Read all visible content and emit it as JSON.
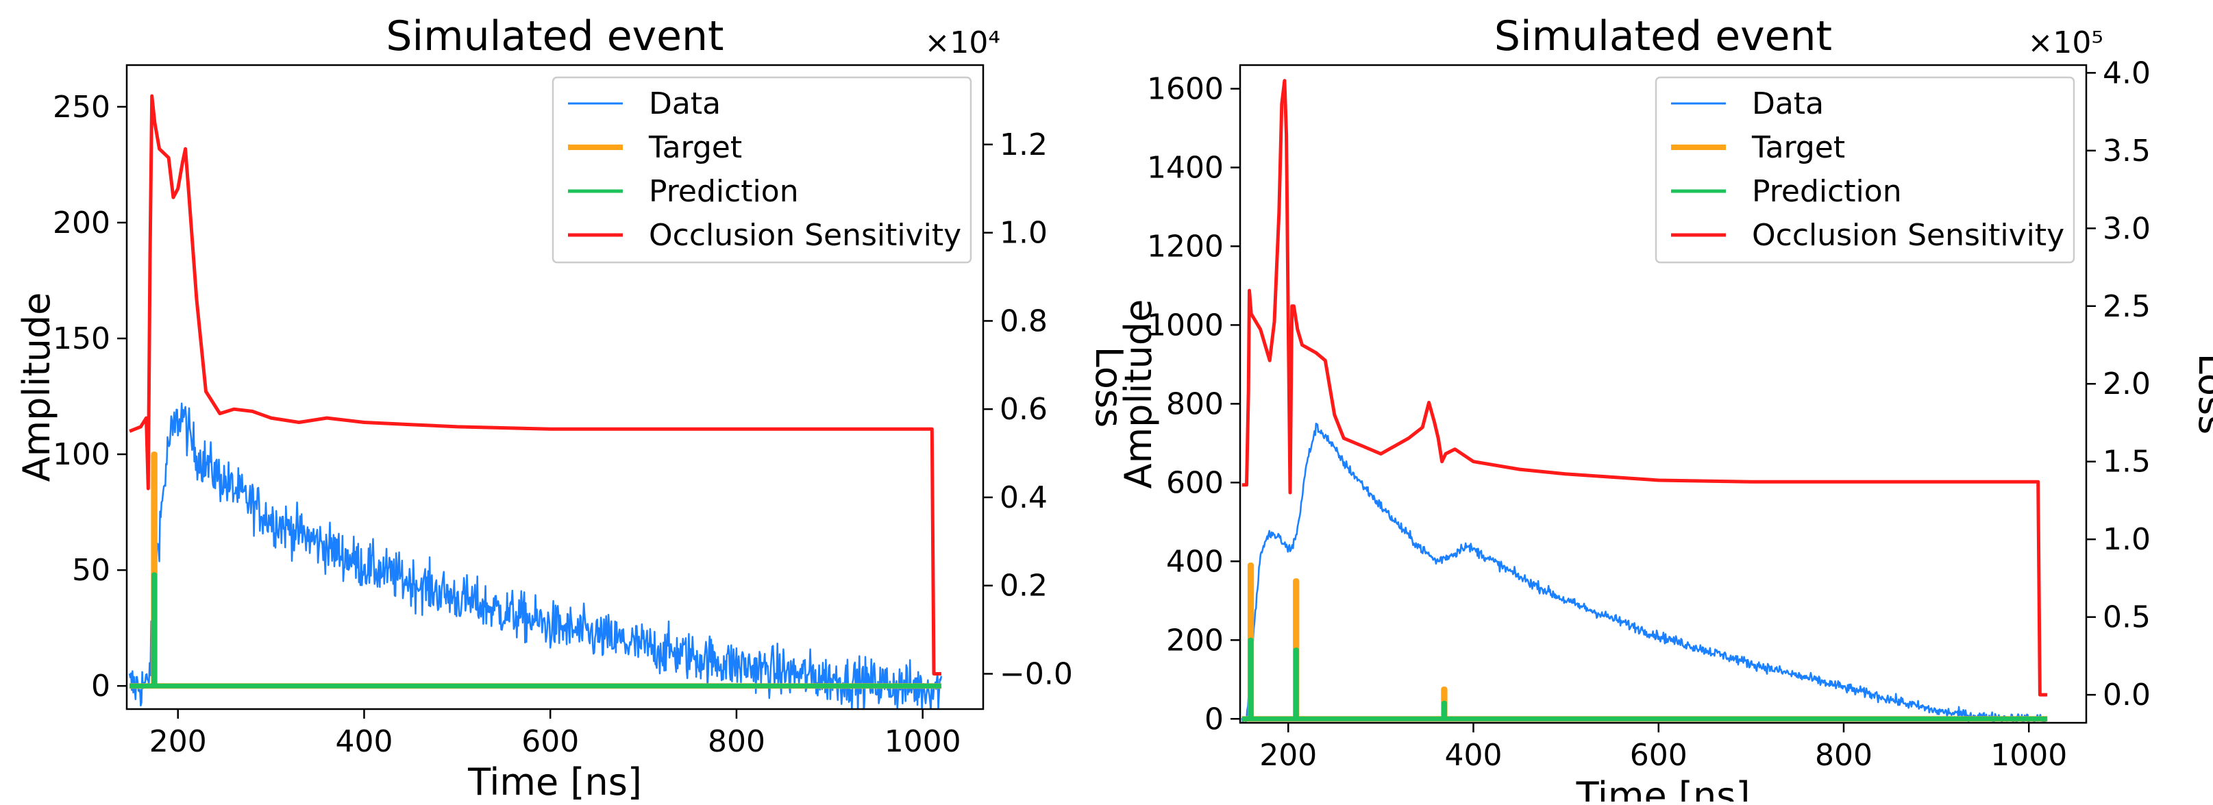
{
  "chart_data": [
    {
      "type": "line",
      "title": "Simulated event",
      "xlabel": "Time [ns]",
      "ylabel": "Amplitude",
      "y2label": "Loss",
      "y2_exponent": "×10⁴",
      "xlim": [
        145,
        1065
      ],
      "ylim": [
        -10,
        268
      ],
      "y2lim": [
        -800,
        13800
      ],
      "xticks": [
        200,
        400,
        600,
        800,
        1000
      ],
      "yticks": [
        0,
        50,
        100,
        150,
        200,
        250
      ],
      "y2ticks": [
        0,
        2000,
        4000,
        6000,
        8000,
        10000,
        12000
      ],
      "y2ticklabels": [
        "−0.0",
        "0.2",
        "0.4",
        "0.6",
        "0.8",
        "1.0",
        "1.2"
      ],
      "legend": {
        "placement": "top-right",
        "entries": [
          {
            "label": "Data",
            "color": "#1a80ff"
          },
          {
            "label": "Target",
            "color": "#ffa319"
          },
          {
            "label": "Prediction",
            "color": "#1ec25a"
          },
          {
            "label": "Occlusion Sensitivity",
            "color": "#ff1a1a"
          }
        ]
      },
      "series": [
        {
          "name": "Data",
          "color": "#1a80ff",
          "axis": "left",
          "noise": 10,
          "x": [
            148,
            168,
            172,
            178,
            190,
            200,
            205,
            210,
            220,
            250,
            300,
            400,
            500,
            600,
            700,
            800,
            900,
            1000,
            1020
          ],
          "values": [
            0,
            0,
            20,
            60,
            105,
            115,
            118,
            110,
            100,
            88,
            72,
            52,
            38,
            26,
            17,
            9,
            3,
            -1,
            0
          ]
        },
        {
          "name": "Target",
          "color": "#ffa319",
          "axis": "left",
          "x": [
            148,
            174,
            174,
            175,
            175,
            1020
          ],
          "values": [
            0,
            0,
            100,
            100,
            0,
            0
          ]
        },
        {
          "name": "Prediction",
          "color": "#1ec25a",
          "axis": "left",
          "x": [
            148,
            174,
            174,
            175,
            175,
            1020
          ],
          "values": [
            0,
            0,
            48,
            48,
            0,
            0
          ]
        },
        {
          "name": "Occlusion Sensitivity",
          "color": "#ff1a1a",
          "axis": "right",
          "x": [
            148,
            160,
            166,
            168,
            170,
            172,
            175,
            180,
            190,
            195,
            200,
            205,
            208,
            212,
            220,
            230,
            245,
            260,
            280,
            300,
            330,
            360,
            400,
            450,
            500,
            600,
            700,
            800,
            900,
            1000,
            1010,
            1012,
            1015,
            1020
          ],
          "values": [
            5500,
            5600,
            5800,
            4200,
            9500,
            13100,
            12500,
            11900,
            11700,
            10800,
            11000,
            11600,
            11900,
            10800,
            8500,
            6400,
            5900,
            6000,
            5950,
            5800,
            5700,
            5800,
            5700,
            5650,
            5600,
            5550,
            5550,
            5550,
            5550,
            5550,
            5550,
            0,
            0,
            0
          ]
        }
      ]
    },
    {
      "type": "line",
      "title": "Simulated event",
      "xlabel": "Time [ns]",
      "ylabel": "Amplitude",
      "y2label": "Loss",
      "y2_exponent": "×10⁵",
      "xlim": [
        148,
        1062
      ],
      "ylim": [
        -10,
        1660
      ],
      "y2lim": [
        -18000,
        405000
      ],
      "xticks": [
        200,
        400,
        600,
        800,
        1000
      ],
      "yticks": [
        0,
        200,
        400,
        600,
        800,
        1000,
        1200,
        1400,
        1600
      ],
      "y2ticks": [
        0,
        50000,
        100000,
        150000,
        200000,
        250000,
        300000,
        350000,
        400000
      ],
      "y2ticklabels": [
        "0.0",
        "0.5",
        "1.0",
        "1.5",
        "2.0",
        "2.5",
        "3.0",
        "3.5",
        "4.0"
      ],
      "legend": {
        "placement": "top-right",
        "entries": [
          {
            "label": "Data",
            "color": "#1a80ff"
          },
          {
            "label": "Target",
            "color": "#ffa319"
          },
          {
            "label": "Prediction",
            "color": "#1ec25a"
          },
          {
            "label": "Occlusion Sensitivity",
            "color": "#ff1a1a"
          }
        ]
      },
      "series": [
        {
          "name": "Data",
          "color": "#1a80ff",
          "axis": "left",
          "noise": 12,
          "x": [
            150,
            155,
            160,
            170,
            180,
            190,
            200,
            205,
            210,
            220,
            230,
            240,
            260,
            300,
            340,
            360,
            380,
            390,
            400,
            450,
            500,
            600,
            700,
            800,
            900,
            950,
            1000,
            1020
          ],
          "values": [
            0,
            0,
            150,
            420,
            470,
            460,
            430,
            440,
            480,
            650,
            740,
            720,
            650,
            540,
            440,
            400,
            420,
            440,
            430,
            360,
            300,
            210,
            140,
            80,
            20,
            5,
            0,
            0
          ]
        },
        {
          "name": "Target",
          "color": "#ffa319",
          "axis": "left",
          "x": [
            150,
            159,
            159,
            160,
            160,
            208,
            208,
            209,
            209,
            368,
            368,
            369,
            369,
            1020
          ],
          "values": [
            0,
            0,
            390,
            390,
            0,
            0,
            350,
            350,
            0,
            0,
            75,
            75,
            0,
            0
          ]
        },
        {
          "name": "Prediction",
          "color": "#1ec25a",
          "axis": "left",
          "x": [
            150,
            159,
            159,
            160,
            160,
            208,
            208,
            209,
            209,
            368,
            368,
            369,
            369,
            1020
          ],
          "values": [
            0,
            0,
            200,
            200,
            0,
            0,
            175,
            175,
            0,
            0,
            40,
            40,
            0,
            0
          ]
        },
        {
          "name": "Occlusion Sensitivity",
          "color": "#ff1a1a",
          "axis": "right",
          "x": [
            150,
            155,
            157,
            158,
            160,
            170,
            180,
            185,
            190,
            193,
            196,
            198,
            200,
            202,
            204,
            206,
            210,
            215,
            230,
            240,
            250,
            260,
            280,
            300,
            330,
            345,
            352,
            358,
            362,
            366,
            370,
            380,
            400,
            450,
            500,
            600,
            700,
            800,
            900,
            1000,
            1010,
            1012,
            1020
          ],
          "values": [
            135000,
            135000,
            195000,
            260000,
            245000,
            235000,
            215000,
            240000,
            310000,
            380000,
            395000,
            360000,
            240000,
            130000,
            250000,
            250000,
            235000,
            225000,
            220000,
            215000,
            180000,
            165000,
            160000,
            155000,
            165000,
            172000,
            188000,
            175000,
            165000,
            150000,
            155000,
            158000,
            150000,
            145000,
            142000,
            138000,
            137000,
            137000,
            137000,
            137000,
            137000,
            0,
            0
          ]
        }
      ]
    }
  ]
}
